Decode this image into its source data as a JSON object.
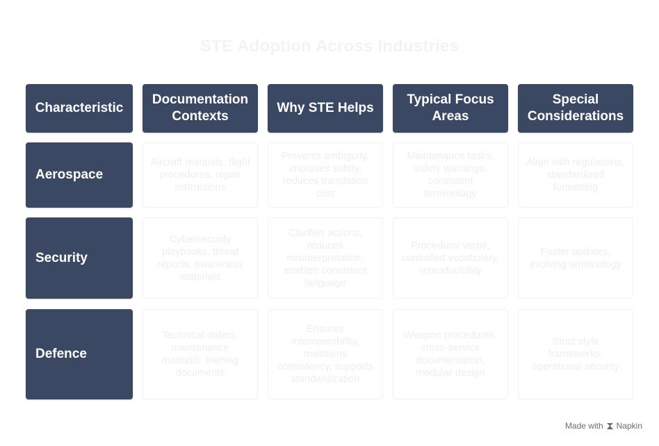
{
  "title": "STE Adoption Across Industries",
  "headers": [
    "Characteristic",
    "Documentation Contexts",
    "Why STE Helps",
    "Typical Focus Areas",
    "Special Considerations"
  ],
  "rows": [
    {
      "label": "Aerospace",
      "cells": [
        "Aircraft manuals, flight procedures, repair instructions",
        "Prevents ambiguity, improves safety, reduces translation cost",
        "Maintenance tasks, safety warnings, consistent terminology",
        "Align with regulations, standardized formatting"
      ]
    },
    {
      "label": "Security",
      "cells": [
        "Cybersecurity playbooks, threat reports, awareness materials",
        "Clarifies actions, reduces misinterpretation, enables consistent language",
        "Procedural verbs, controlled vocabulary, reproducibility",
        "Faster updates, evolving terminology"
      ]
    },
    {
      "label": "Defence",
      "cells": [
        "Technical orders, maintenance manuals, training documents",
        "Ensures interoperability, maintains consistency, supports standardization",
        "Weapon procedures, cross-service documentation, modular design",
        "Strict style frameworks, operational security"
      ]
    }
  ],
  "footer": {
    "made_with": "Made with",
    "brand": "Napkin",
    "icon": "napkin-logo-icon"
  },
  "colors": {
    "header_fill": "#3b4863",
    "header_text": "#ffffff",
    "cell_border": "#f1f2f4",
    "cell_text": "#eceef1",
    "title": "#f2f3f5"
  }
}
